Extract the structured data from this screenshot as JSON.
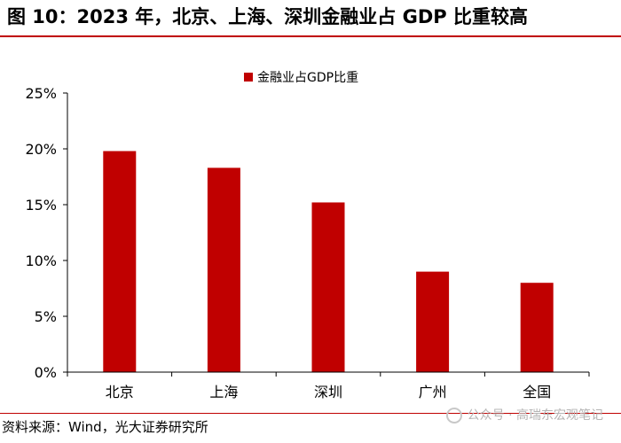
{
  "page": {
    "title": "图 10：2023 年，北京、上海、深圳金融业占 GDP 比重较高",
    "source": "资料来源：Wind，光大证券研究所",
    "watermark": "公众号 · 高瑞东宏观笔记"
  },
  "colors": {
    "bar": "#c00000",
    "rule": "#c00000",
    "axis": "#000000"
  },
  "chart_data": {
    "type": "bar",
    "title": "",
    "categories": [
      "北京",
      "上海",
      "深圳",
      "广州",
      "全国"
    ],
    "series": [
      {
        "name": "金融业占GDP比重",
        "values": [
          19.8,
          18.3,
          15.2,
          9.0,
          8.0
        ]
      }
    ],
    "yticks": [
      "0%",
      "5%",
      "10%",
      "15%",
      "20%",
      "25%"
    ],
    "ylim": [
      0,
      25
    ],
    "xlabel": "",
    "ylabel": "",
    "grid": false,
    "legend_position": "top-center"
  }
}
